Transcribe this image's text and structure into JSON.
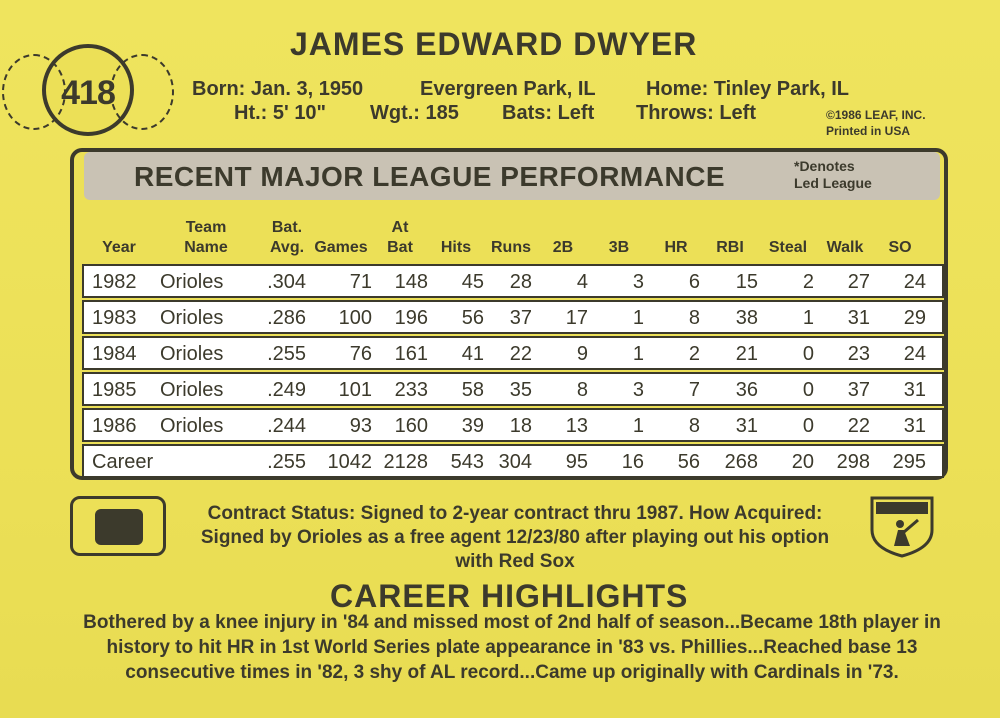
{
  "card_number": "418",
  "player_name": "JAMES EDWARD DWYER",
  "bio": {
    "born": "Born: Jan. 3, 1950",
    "birthplace": "Evergreen Park, IL",
    "home": "Home: Tinley Park, IL",
    "height": "Ht.: 5' 10\"",
    "weight": "Wgt.: 185",
    "bats": "Bats: Left",
    "throws": "Throws: Left"
  },
  "copyright": "©1986 LEAF, INC.",
  "printed": "Printed in USA",
  "performance": {
    "title": "RECENT MAJOR LEAGUE PERFORMANCE",
    "note_line1": "*Denotes",
    "note_line2": "Led League",
    "headers": {
      "year": "Year",
      "team1": "Team",
      "team2": "Name",
      "bat1": "Bat.",
      "bat2": "Avg.",
      "games": "Games",
      "atbat1": "At",
      "atbat2": "Bat",
      "hits": "Hits",
      "runs": "Runs",
      "doubles": "2B",
      "triples": "3B",
      "hr": "HR",
      "rbi": "RBI",
      "steal": "Steal",
      "walk": "Walk",
      "so": "SO"
    },
    "rows": [
      [
        "1982",
        "Orioles",
        ".304",
        "71",
        "148",
        "45",
        "28",
        "4",
        "3",
        "6",
        "15",
        "2",
        "27",
        "24"
      ],
      [
        "1983",
        "Orioles",
        ".286",
        "100",
        "196",
        "56",
        "37",
        "17",
        "1",
        "8",
        "38",
        "1",
        "31",
        "29"
      ],
      [
        "1984",
        "Orioles",
        ".255",
        "76",
        "161",
        "41",
        "22",
        "9",
        "1",
        "2",
        "21",
        "0",
        "23",
        "24"
      ],
      [
        "1985",
        "Orioles",
        ".249",
        "101",
        "233",
        "58",
        "35",
        "8",
        "3",
        "7",
        "36",
        "0",
        "37",
        "31"
      ],
      [
        "1986",
        "Orioles",
        ".244",
        "93",
        "160",
        "39",
        "18",
        "13",
        "1",
        "8",
        "31",
        "0",
        "22",
        "31"
      ],
      [
        "Career",
        "",
        ".255",
        "1042",
        "2128",
        "543",
        "304",
        "95",
        "16",
        "56",
        "268",
        "20",
        "298",
        "295"
      ]
    ]
  },
  "contract": {
    "line1": "Contract Status: Signed to 2-year contract thru 1987. How Acquired:",
    "line2": "Signed by Orioles as a free agent 12/23/80 after playing out his option",
    "line3": "with Red Sox"
  },
  "highlights": {
    "title": "CAREER HIGHLIGHTS",
    "line1": "Bothered by a knee injury in '84 and missed most of 2nd half of season...Became 18th player in",
    "line2": "history to hit HR in 1st World Series plate appearance in '83 vs. Phillies...Reached base 13",
    "line3": "consecutive times in '82, 3 shy of AL record...Came up originally with Cardinals in '73."
  },
  "colors": {
    "card": "#ece057",
    "ink": "#3c3a2c",
    "title_band": "#c9c2b4",
    "row_fill": "#ffffff"
  }
}
